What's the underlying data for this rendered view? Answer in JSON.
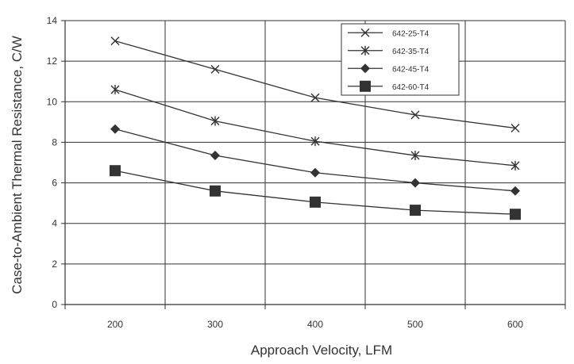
{
  "chart_data": {
    "type": "line",
    "title": "",
    "xlabel": "Approach Velocity, LFM",
    "ylabel": "Case-to-Ambient Thermal Resistance, C/W",
    "x": [
      200,
      300,
      400,
      500,
      600
    ],
    "x_tick_labels": [
      "200",
      "300",
      "400",
      "500",
      "600"
    ],
    "y_tick_labels": [
      "0",
      "2",
      "4",
      "6",
      "8",
      "10",
      "12",
      "14"
    ],
    "ylim": [
      0,
      14
    ],
    "grid": true,
    "legend_position": "top-right",
    "series": [
      {
        "name": "642-25-T4",
        "marker": "x",
        "values": [
          13.0,
          11.6,
          10.2,
          9.35,
          8.7
        ]
      },
      {
        "name": "642-35-T4",
        "marker": "star",
        "values": [
          10.6,
          9.05,
          8.05,
          7.35,
          6.85
        ]
      },
      {
        "name": "642-45-T4",
        "marker": "diamond",
        "values": [
          8.65,
          7.35,
          6.5,
          6.0,
          5.6
        ]
      },
      {
        "name": "642-60-T4",
        "marker": "square",
        "values": [
          6.6,
          5.6,
          5.05,
          4.65,
          4.45
        ]
      }
    ],
    "colors": {
      "line": "#333333",
      "grid": "#333333",
      "axis": "#333333"
    }
  }
}
